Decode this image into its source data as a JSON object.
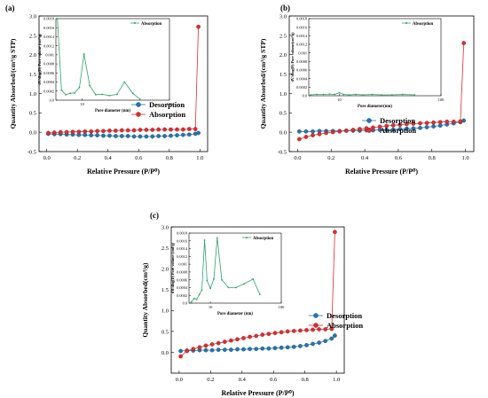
{
  "panel_labels": [
    "(a)",
    "(b)",
    "(c)"
  ],
  "chart_data": [
    {
      "type": "scatter",
      "panel": "(a)",
      "title": "",
      "xlabel": "Relative Pressure (P/P⁰)",
      "ylabel": "Quantity Absorbed/(cm³/g STP)",
      "xlim": [
        -0.05,
        1.05
      ],
      "ylim": [
        -0.5,
        3.0
      ],
      "xticks": [
        0.0,
        0.2,
        0.4,
        0.6,
        0.8,
        1.0
      ],
      "yticks": [
        -0.5,
        0.0,
        0.5,
        1.0,
        1.5,
        2.0,
        2.5,
        3.0
      ],
      "legend_position": "lower-right",
      "series": [
        {
          "name": "Desorption",
          "color": "#1f77b4",
          "x": [
            0.01,
            0.05,
            0.09,
            0.13,
            0.17,
            0.21,
            0.25,
            0.29,
            0.33,
            0.37,
            0.41,
            0.45,
            0.49,
            0.53,
            0.57,
            0.61,
            0.65,
            0.69,
            0.73,
            0.77,
            0.81,
            0.85,
            0.89,
            0.93,
            0.97,
            0.99
          ],
          "y": [
            -0.04,
            -0.05,
            -0.05,
            -0.06,
            -0.06,
            -0.07,
            -0.07,
            -0.08,
            -0.08,
            -0.09,
            -0.09,
            -0.1,
            -0.1,
            -0.1,
            -0.11,
            -0.11,
            -0.11,
            -0.11,
            -0.1,
            -0.1,
            -0.09,
            -0.08,
            -0.07,
            -0.06,
            -0.04,
            -0.02
          ]
        },
        {
          "name": "Absorption",
          "color": "#e8292b",
          "x": [
            0.01,
            0.05,
            0.09,
            0.13,
            0.17,
            0.21,
            0.25,
            0.29,
            0.33,
            0.37,
            0.41,
            0.45,
            0.49,
            0.53,
            0.57,
            0.61,
            0.65,
            0.69,
            0.73,
            0.77,
            0.81,
            0.85,
            0.89,
            0.93,
            0.97,
            0.99
          ],
          "y": [
            -0.02,
            -0.01,
            0.0,
            0.0,
            0.01,
            0.01,
            0.02,
            0.02,
            0.03,
            0.03,
            0.04,
            0.04,
            0.05,
            0.05,
            0.05,
            0.06,
            0.06,
            0.06,
            0.07,
            0.07,
            0.07,
            0.07,
            0.07,
            0.08,
            0.08,
            2.72
          ]
        }
      ],
      "inset": {
        "type": "line",
        "xlabel": "Pore diameter (nm)",
        "ylabel": "dV/dlog(D) Pore volume (cm³/g)",
        "xscale": "log",
        "xlim": [
          5,
          100
        ],
        "ylim": [
          0,
          0.0018
        ],
        "yticks": [
          0.0,
          0.0002,
          0.0004,
          0.0006,
          0.0008,
          0.001,
          0.0012,
          0.0014,
          0.0016,
          0.0018
        ],
        "xtick_labels": [
          "10",
          "100"
        ],
        "legend": "Absorption",
        "color": "#2ca26b",
        "x": [
          5.2,
          5.8,
          6.5,
          7.3,
          8.2,
          9.3,
          10.5,
          12.2,
          14.3,
          17.0,
          20.5,
          25.0,
          30.5,
          38.0,
          46.0
        ],
        "y": [
          0.0018,
          0.00022,
          0.00012,
          0.00015,
          0.00016,
          0.00028,
          0.00102,
          0.00032,
          0.00012,
          0.00013,
          0.0001,
          0.00013,
          0.0004,
          0.00015,
          2e-05
        ]
      }
    },
    {
      "type": "scatter",
      "panel": "(b)",
      "title": "",
      "xlabel": "Relative Pressure (P/P⁰)",
      "ylabel": "Quantity Absorbed/(cm³/g STP)",
      "xlim": [
        -0.05,
        1.05
      ],
      "ylim": [
        -0.5,
        3.0
      ],
      "xticks": [
        0.0,
        0.2,
        0.4,
        0.6,
        0.8,
        1.0
      ],
      "yticks": [
        -0.5,
        0.0,
        0.5,
        1.0,
        1.5,
        2.0,
        2.5,
        3.0
      ],
      "legend_position": "lower-right",
      "series": [
        {
          "name": "Desorption",
          "color": "#1f77b4",
          "x": [
            0.01,
            0.05,
            0.09,
            0.13,
            0.17,
            0.21,
            0.25,
            0.29,
            0.33,
            0.37,
            0.41,
            0.45,
            0.49,
            0.53,
            0.57,
            0.61,
            0.65,
            0.69,
            0.73,
            0.77,
            0.81,
            0.85,
            0.89,
            0.93,
            0.97,
            0.99
          ],
          "y": [
            0.02,
            0.02,
            0.02,
            0.03,
            0.03,
            0.03,
            0.03,
            0.04,
            0.04,
            0.04,
            0.05,
            0.05,
            0.06,
            0.06,
            0.07,
            0.08,
            0.09,
            0.1,
            0.11,
            0.13,
            0.15,
            0.17,
            0.2,
            0.23,
            0.26,
            0.3
          ]
        },
        {
          "name": "Absorption",
          "color": "#e8292b",
          "x": [
            0.01,
            0.05,
            0.09,
            0.13,
            0.17,
            0.21,
            0.25,
            0.29,
            0.33,
            0.37,
            0.41,
            0.45,
            0.49,
            0.53,
            0.57,
            0.61,
            0.65,
            0.69,
            0.73,
            0.77,
            0.81,
            0.85,
            0.89,
            0.93,
            0.97,
            0.99
          ],
          "y": [
            -0.18,
            -0.12,
            -0.08,
            -0.05,
            -0.02,
            0.0,
            0.02,
            0.04,
            0.06,
            0.08,
            0.1,
            0.12,
            0.14,
            0.16,
            0.18,
            0.19,
            0.21,
            0.22,
            0.23,
            0.24,
            0.25,
            0.26,
            0.27,
            0.27,
            0.28,
            2.3
          ]
        }
      ],
      "inset": {
        "type": "line",
        "xlabel": "Pore diameter(nm)",
        "ylabel": "dV/dlog(D) Pore volume(cm³/g)",
        "xscale": "log",
        "xlim": [
          5,
          100
        ],
        "ylim": [
          0,
          0.0018
        ],
        "yticks": [
          0.0,
          0.0002,
          0.0004,
          0.0006,
          0.0008,
          0.001,
          0.0012,
          0.0014,
          0.0016,
          0.0018
        ],
        "xtick_labels": [
          "10",
          "100"
        ],
        "legend": "Absorption",
        "color": "#2ca26b",
        "x": [
          5.2,
          6.0,
          7.0,
          8.0,
          9.0,
          10.0,
          11.0,
          12.5,
          14.5,
          17.0,
          21.0,
          26.0,
          33.0,
          42.0,
          55.0
        ],
        "y": [
          2e-05,
          3e-05,
          3e-05,
          4e-05,
          3e-05,
          7e-05,
          3e-05,
          2e-05,
          3e-05,
          2e-05,
          3e-05,
          2e-05,
          2e-05,
          3e-05,
          2e-05
        ]
      }
    },
    {
      "type": "scatter",
      "panel": "(c)",
      "title": "",
      "xlabel": "Relative Pressure (P/P⁰)",
      "ylabel": "Quantity Absorbed(cm³/g)",
      "xlim": [
        -0.05,
        1.05
      ],
      "ylim": [
        -0.5,
        3.0
      ],
      "xticks": [
        0.0,
        0.2,
        0.4,
        0.6,
        0.8,
        1.0
      ],
      "yticks": [
        0.0,
        0.5,
        1.0,
        1.5,
        2.0,
        2.5,
        3.0
      ],
      "legend_position": "lower-right",
      "series": [
        {
          "name": "Desorption",
          "color": "#1f77b4",
          "x": [
            0.01,
            0.05,
            0.09,
            0.13,
            0.17,
            0.21,
            0.25,
            0.29,
            0.33,
            0.37,
            0.41,
            0.45,
            0.49,
            0.53,
            0.57,
            0.61,
            0.65,
            0.69,
            0.73,
            0.77,
            0.81,
            0.85,
            0.89,
            0.93,
            0.97,
            0.99
          ],
          "y": [
            0.03,
            0.04,
            0.04,
            0.05,
            0.05,
            0.05,
            0.06,
            0.06,
            0.06,
            0.07,
            0.07,
            0.08,
            0.08,
            0.09,
            0.09,
            0.1,
            0.11,
            0.12,
            0.13,
            0.15,
            0.17,
            0.2,
            0.23,
            0.27,
            0.33,
            0.4
          ]
        },
        {
          "name": "Absorption",
          "color": "#e8292b",
          "x": [
            0.01,
            0.05,
            0.09,
            0.13,
            0.17,
            0.21,
            0.25,
            0.29,
            0.33,
            0.37,
            0.41,
            0.45,
            0.49,
            0.53,
            0.57,
            0.61,
            0.65,
            0.69,
            0.73,
            0.77,
            0.81,
            0.85,
            0.89,
            0.93,
            0.97,
            0.99
          ],
          "y": [
            -0.1,
            0.03,
            0.08,
            0.12,
            0.16,
            0.19,
            0.22,
            0.25,
            0.28,
            0.31,
            0.34,
            0.37,
            0.39,
            0.42,
            0.44,
            0.46,
            0.48,
            0.5,
            0.51,
            0.52,
            0.53,
            0.54,
            0.55,
            0.55,
            0.56,
            2.88
          ]
        }
      ],
      "inset": {
        "type": "line",
        "xlabel": "Pore diameter (nm)",
        "ylabel": "dV/dlog(D) Pore volume (cm³/g)",
        "xscale": "log",
        "xlim": [
          5,
          100
        ],
        "ylim": [
          0,
          0.0018
        ],
        "yticks": [
          0.0,
          0.0002,
          0.0004,
          0.0006,
          0.0008,
          0.001,
          0.0012,
          0.0014,
          0.0016,
          0.0018
        ],
        "xtick_labels": [
          "10",
          "100"
        ],
        "legend": "Absorption",
        "color": "#2ca26b",
        "x": [
          5.4,
          5.9,
          6.4,
          7.0,
          7.6,
          8.3,
          9.0,
          10.0,
          11.2,
          12.5,
          14.5,
          18.0,
          23.0,
          30.0,
          40.0,
          50.0
        ],
        "y": [
          3e-05,
          0.00012,
          0.0001,
          0.00022,
          0.00034,
          0.00162,
          0.00058,
          0.00038,
          0.00062,
          0.00168,
          0.0006,
          0.0004,
          0.0004,
          0.0005,
          0.00062,
          0.00022
        ]
      }
    }
  ]
}
